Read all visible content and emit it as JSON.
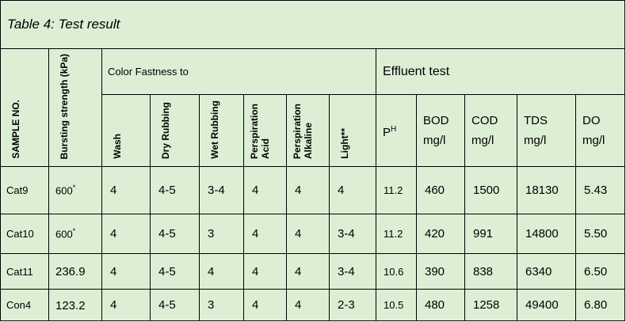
{
  "table": {
    "title": "Table 4: Test result",
    "group_headers": {
      "color_fastness": "Color Fastness to",
      "effluent": "Effluent test"
    },
    "vertical_headers": {
      "sample": "SAMPLE NO.",
      "bursting": "Bursting strength (kPa)",
      "wash": "Wash",
      "dry": "Dry Rubbing",
      "wet": "Wet Rubbing",
      "perspiration_acid_1": "Perspiration",
      "perspiration_acid_2": "Acid",
      "perspiration_alk_1": "Perspiration",
      "perspiration_alk_2": "Alkaline",
      "light": "Light**"
    },
    "effluent_headers": {
      "ph_base": "P",
      "ph_sup": "H",
      "bod_1": "BOD",
      "bod_2": "mg/l",
      "cod_1": "COD",
      "cod_2": "mg/l",
      "tds_1": "TDS",
      "tds_2": "mg/l",
      "do_1": "DO",
      "do_2": "mg/l"
    },
    "rows": [
      {
        "sample": "Cat9",
        "burst": "600",
        "burst_mark": "*",
        "wash": "4",
        "dry": "4-5",
        "wet": "3-4",
        "acid": "4",
        "alk": "4",
        "light": "4",
        "ph": "11.2",
        "bod": "460",
        "cod": "1500",
        "tds": "18130",
        "do": "5.43"
      },
      {
        "sample": "Cat10",
        "burst": "600",
        "burst_mark": "*",
        "wash": "4",
        "dry": "4-5",
        "wet": "3",
        "acid": "4",
        "alk": "4",
        "light": "3-4",
        "ph": "11.2",
        "bod": "420",
        "cod": "991",
        "tds": "14800",
        "do": "5.50"
      },
      {
        "sample": "Cat11",
        "burst": "236.9",
        "burst_mark": "",
        "wash": "4",
        "dry": "4-5",
        "wet": "4",
        "acid": "4",
        "alk": "4",
        "light": "3-4",
        "ph": "10.6",
        "bod": "390",
        "cod": "838",
        "tds": "6340",
        "do": "6.50"
      },
      {
        "sample": "Con4",
        "burst": "123.2",
        "burst_mark": "",
        "wash": "4",
        "dry": "4-5",
        "wet": "3",
        "acid": "4",
        "alk": "4",
        "light": "2-3",
        "ph": "10.5",
        "bod": "480",
        "cod": "1258",
        "tds": "49400",
        "do": "6.80"
      }
    ]
  }
}
